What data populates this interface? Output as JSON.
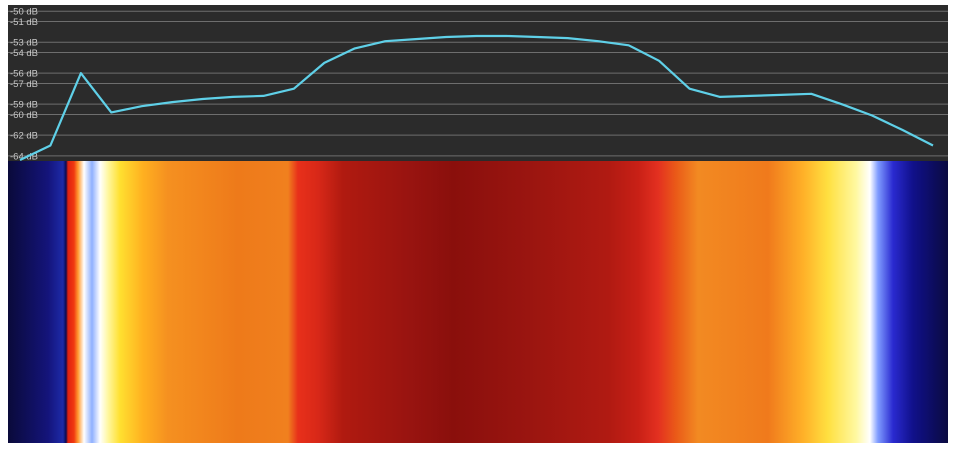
{
  "chart_data": {
    "type": "line",
    "yticks": [
      {
        "value": -50,
        "label": "-50 dB"
      },
      {
        "value": -51,
        "label": "-51 dB"
      },
      {
        "value": -53,
        "label": "-53 dB"
      },
      {
        "value": -54,
        "label": "-54 dB"
      },
      {
        "value": -56,
        "label": "-56 dB"
      },
      {
        "value": -57,
        "label": "-57 dB"
      },
      {
        "value": -59,
        "label": "-59 dB"
      },
      {
        "value": -60,
        "label": "-60 dB"
      },
      {
        "value": -62,
        "label": "-62 dB"
      },
      {
        "value": -64,
        "label": "-64 dB"
      }
    ],
    "ylim": [
      -64.5,
      -49.4
    ],
    "values": [
      -64.4,
      -63,
      -56,
      -59.8,
      -59.2,
      -58.8,
      -58.5,
      -58.3,
      -58.2,
      -57.5,
      -55,
      -53.6,
      -52.9,
      -52.7,
      -52.5,
      -52.4,
      -52.4,
      -52.5,
      -52.6,
      -52.9,
      -53.3,
      -54.8,
      -57.5,
      -58.3,
      -58.2,
      -58.1,
      -58,
      -59,
      -60.1,
      -61.5,
      -63
    ],
    "color": "#5fd0e8",
    "grid": true
  }
}
